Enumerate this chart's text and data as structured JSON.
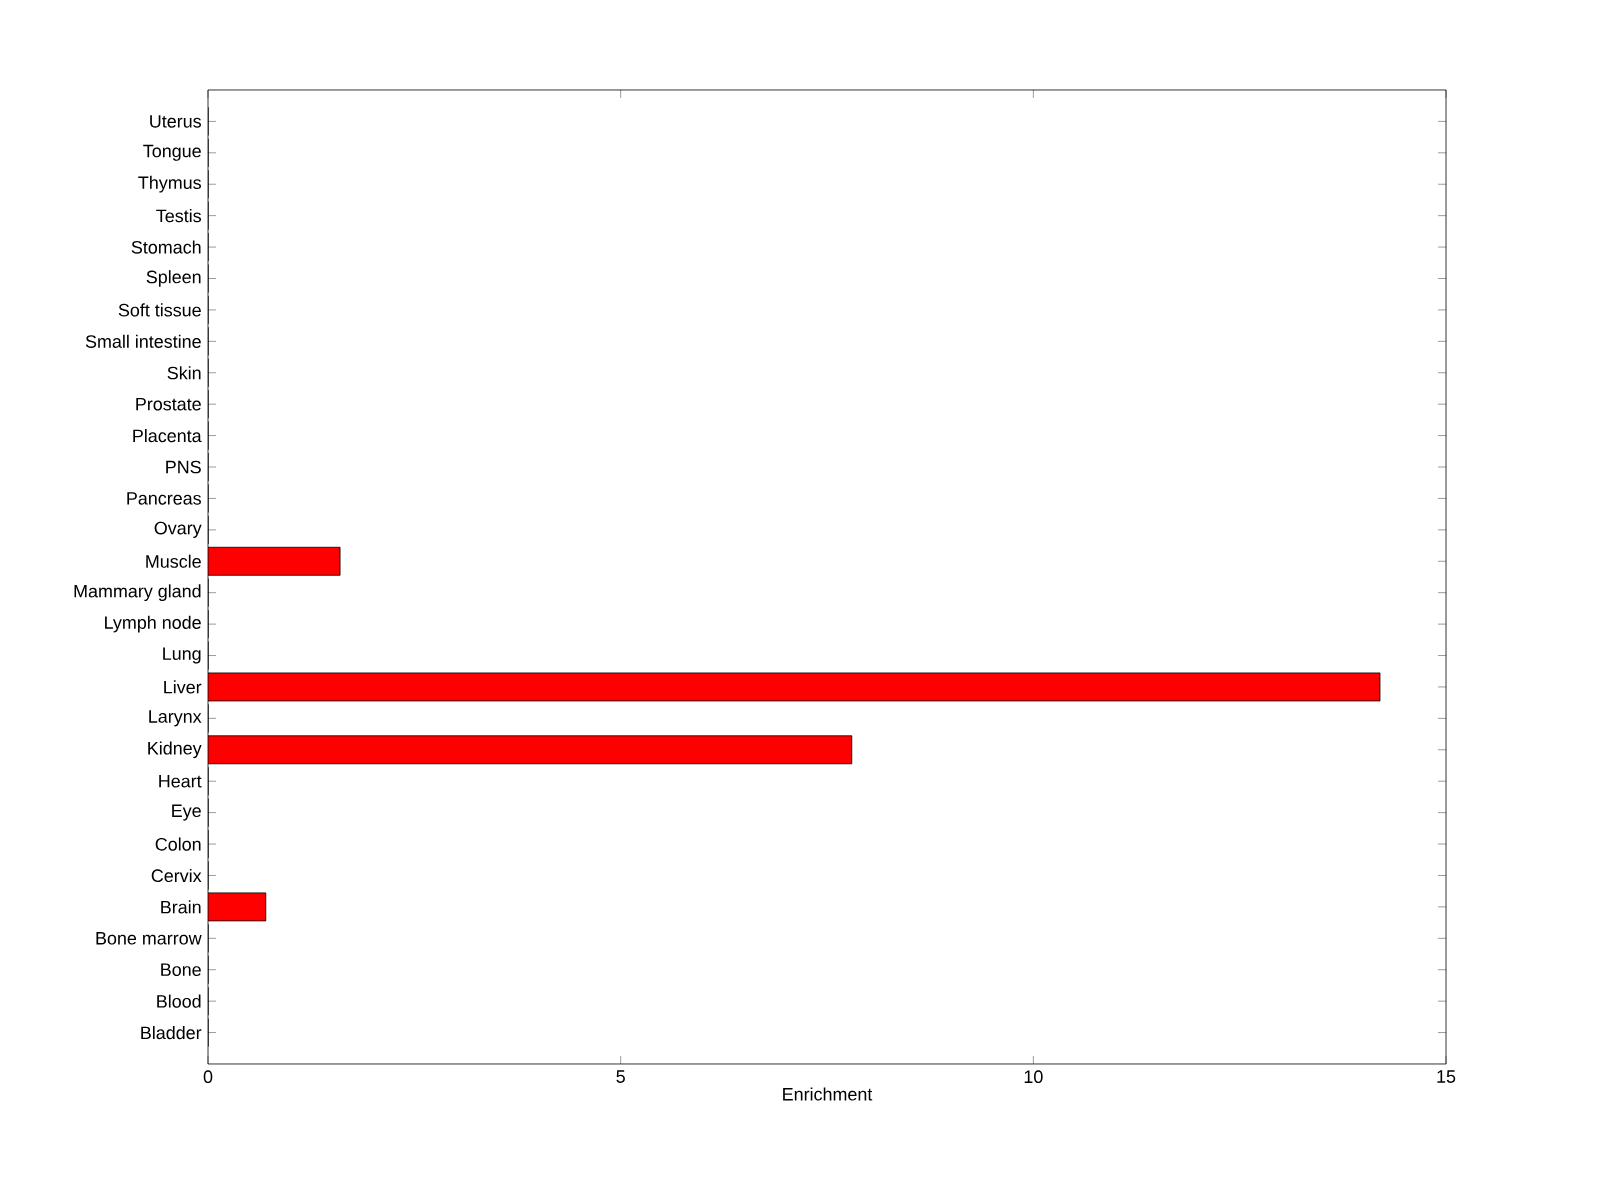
{
  "chart_data": {
    "type": "bar",
    "orientation": "horizontal",
    "xlabel": "Enrichment",
    "categories": [
      "Uterus",
      "Tongue",
      "Thymus",
      "Testis",
      "Stomach",
      "Spleen",
      "Soft tissue",
      "Small intestine",
      "Skin",
      "Prostate",
      "Placenta",
      "PNS",
      "Pancreas",
      "Ovary",
      "Muscle",
      "Mammary gland",
      "Lymph node",
      "Lung",
      "Liver",
      "Larynx",
      "Kidney",
      "Heart",
      "Eye",
      "Colon",
      "Cervix",
      "Brain",
      "Bone marrow",
      "Bone",
      "Blood",
      "Bladder"
    ],
    "values": [
      0,
      0,
      0,
      0,
      0,
      0,
      0,
      0,
      0,
      0,
      0,
      0,
      0,
      0,
      1.6,
      0,
      0,
      0,
      14.2,
      0,
      7.8,
      0,
      0,
      0,
      0,
      0.7,
      0,
      0,
      0,
      0
    ],
    "color": "#ff0000",
    "xlim": [
      0,
      15
    ],
    "xticks": [
      0,
      5,
      10,
      15
    ]
  }
}
